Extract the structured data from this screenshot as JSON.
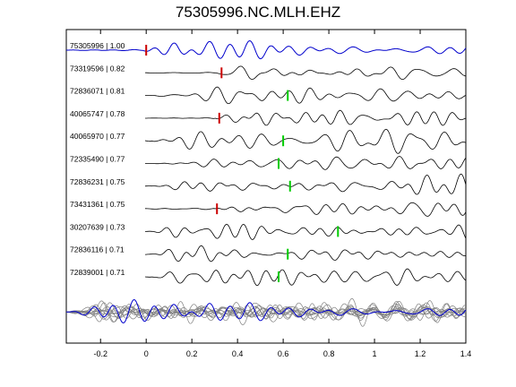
{
  "chart_data": {
    "type": "line",
    "title": "75305996.NC.MLH.EHZ",
    "xlabel": "",
    "ylabel": "",
    "xlim": [
      -0.35,
      1.4
    ],
    "xticks": [
      "-0.2",
      "0",
      "0.2",
      "0.4",
      "0.6",
      "0.8",
      "1",
      "1.2",
      "1.4"
    ],
    "xtick_values": [
      -0.2,
      0,
      0.2,
      0.4,
      0.6,
      0.8,
      1.0,
      1.2,
      1.4
    ],
    "grid": false,
    "colors": {
      "reference": "#0000cc",
      "trace": "#000000",
      "stack": "#808080",
      "pick_red": "#cc0000",
      "pick_green": "#00cc00"
    },
    "traces": [
      {
        "id": "75305996",
        "cc": "1.00",
        "label": "75305996 | 1.00",
        "pick": 0.0,
        "pick_color": "red",
        "onset": -0.02,
        "reference": true
      },
      {
        "id": "73319596",
        "cc": "0.82",
        "label": "73319596 | 0.82",
        "pick": 0.33,
        "pick_color": "red",
        "onset": 0.3
      },
      {
        "id": "72836071",
        "cc": "0.81",
        "label": "72836071 | 0.81",
        "pick": 0.62,
        "pick_color": "green",
        "onset": 0.02
      },
      {
        "id": "40065747",
        "cc": "0.78",
        "label": "40065747 | 0.78",
        "pick": 0.32,
        "pick_color": "red",
        "onset": 0.3
      },
      {
        "id": "40065970",
        "cc": "0.77",
        "label": "40065970 | 0.77",
        "pick": 0.6,
        "pick_color": "green",
        "onset": 0.02
      },
      {
        "id": "72335490",
        "cc": "0.77",
        "label": "72335490 | 0.77",
        "pick": 0.58,
        "pick_color": "green",
        "onset": 0.02
      },
      {
        "id": "72836231",
        "cc": "0.75",
        "label": "72836231 | 0.75",
        "pick": 0.63,
        "pick_color": "green",
        "onset": 0.02
      },
      {
        "id": "73431361",
        "cc": "0.75",
        "label": "73431361 | 0.75",
        "pick": 0.31,
        "pick_color": "red",
        "onset": 0.3
      },
      {
        "id": "30207639",
        "cc": "0.73",
        "label": "30207639 | 0.73",
        "pick": 0.84,
        "pick_color": "green",
        "onset": 0.02
      },
      {
        "id": "72836116",
        "cc": "0.71",
        "label": "72836116 | 0.71",
        "pick": 0.62,
        "pick_color": "green",
        "onset": 0.02
      },
      {
        "id": "72839001",
        "cc": "0.71",
        "label": "72839001 | 0.71",
        "pick": 0.58,
        "pick_color": "green",
        "onset": 0.02
      }
    ],
    "stack": true
  }
}
